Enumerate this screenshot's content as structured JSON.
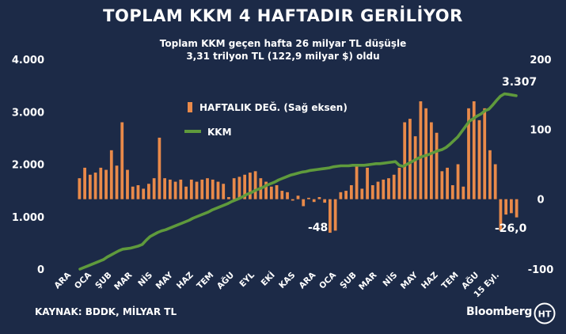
{
  "title": "TOPLAM KKM 4 HAFTADIR GERİLİYOR",
  "subtitle_line1": "Toplam KKM geçen hafta 26 milyar TL düşüşle",
  "subtitle_line2": "3,31 trilyon TL (122,9 milyar $) oldu",
  "source": "KAYNAK: BDDK, MİLYAR TL",
  "brand": "Bloomberg",
  "logo_text": "HT",
  "colors": {
    "background": "#1c2a47",
    "bar": "#e98a4a",
    "line": "#5f9a3c",
    "text": "#ffffff"
  },
  "chart_data": {
    "type": "bar+line",
    "legend": [
      {
        "label": "HAFTALIK DEĞ. (Sağ eksen)",
        "kind": "bar",
        "color": "#e98a4a"
      },
      {
        "label": "KKM",
        "kind": "line",
        "color": "#5f9a3c"
      }
    ],
    "left_axis": {
      "min": 0,
      "max": 4000,
      "ticks": [
        "0",
        "1.000",
        "2.000",
        "3.000",
        "4.000"
      ]
    },
    "right_axis": {
      "min": -100,
      "max": 200,
      "ticks": [
        "-100",
        "0",
        "100",
        "200"
      ]
    },
    "x_tick_labels": [
      "ARA",
      "OCA",
      "ŞUB",
      "MAR",
      "NİS",
      "MAY",
      "HAZ",
      "TEM",
      "AĞU",
      "EYL",
      "EKİ",
      "KAS",
      "ARA",
      "OCA",
      "ŞUB",
      "MAR",
      "NİS",
      "MAY",
      "HAZ",
      "TEM",
      "AĞU",
      "15 Eyl."
    ],
    "weekly_change": [
      30,
      45,
      35,
      38,
      45,
      42,
      70,
      48,
      110,
      42,
      18,
      20,
      15,
      22,
      30,
      88,
      30,
      28,
      25,
      28,
      18,
      28,
      25,
      28,
      30,
      28,
      25,
      22,
      3,
      30,
      32,
      35,
      38,
      40,
      30,
      25,
      18,
      20,
      12,
      10,
      -2,
      5,
      -10,
      2,
      -4,
      3,
      -5,
      -48,
      -45,
      10,
      12,
      20,
      48,
      15,
      45,
      20,
      25,
      28,
      30,
      35,
      45,
      110,
      115,
      90,
      140,
      130,
      110,
      95,
      40,
      45,
      20,
      50,
      18,
      130,
      140,
      113,
      130,
      70,
      50,
      -45,
      -22,
      -20,
      -26
    ],
    "kkm_total": [
      0,
      30,
      60,
      90,
      120,
      150,
      180,
      230,
      270,
      310,
      350,
      380,
      390,
      400,
      420,
      440,
      470,
      550,
      620,
      660,
      700,
      730,
      750,
      780,
      810,
      840,
      870,
      900,
      930,
      970,
      1000,
      1030,
      1060,
      1090,
      1130,
      1160,
      1190,
      1220,
      1250,
      1290,
      1320,
      1350,
      1390,
      1430,
      1460,
      1500,
      1530,
      1560,
      1600,
      1630,
      1660,
      1700,
      1730,
      1760,
      1790,
      1810,
      1830,
      1850,
      1860,
      1880,
      1890,
      1900,
      1910,
      1920,
      1930,
      1950,
      1960,
      1970,
      1970,
      1970,
      1980,
      1980,
      1980,
      1980,
      1990,
      2000,
      2010,
      2010,
      2020,
      2030,
      2040,
      2050,
      1980,
      1960,
      2000,
      2040,
      2080,
      2120,
      2150,
      2170,
      2200,
      2230,
      2260,
      2280,
      2320,
      2380,
      2450,
      2520,
      2620,
      2720,
      2820,
      2870,
      2920,
      2960,
      3020,
      3050,
      3130,
      3220,
      3300,
      3342,
      3333,
      3320,
      3307
    ],
    "annotations": [
      {
        "text": "-48",
        "series": "weekly_change"
      },
      {
        "text": "-26,0",
        "series": "weekly_change"
      },
      {
        "text": "3.307",
        "series": "kkm_total"
      }
    ]
  }
}
